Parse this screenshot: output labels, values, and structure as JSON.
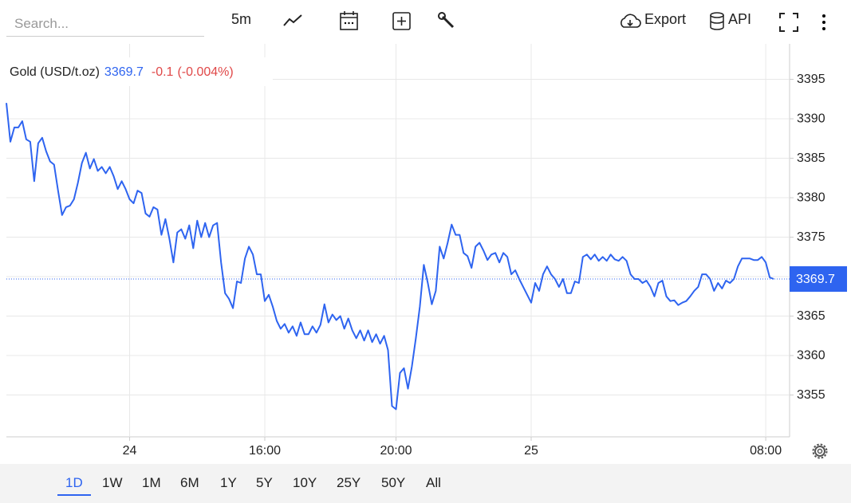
{
  "toolbar": {
    "search_placeholder": "Search...",
    "interval": "5m",
    "export": "Export",
    "api": "API"
  },
  "chart_data": {
    "type": "line",
    "title": "Gold (USD/t.oz)",
    "last": 3369.7,
    "change": -0.1,
    "change_percent": "(-0.004%)",
    "color": "#2e64f0",
    "values": [
      3392.0,
      3387.1,
      3388.9,
      3388.9,
      3389.7,
      3387.4,
      3387.1,
      3382.1,
      3386.9,
      3387.6,
      3385.9,
      3384.6,
      3384.2,
      3380.9,
      3377.8,
      3378.8,
      3379.0,
      3379.8,
      3381.9,
      3384.4,
      3385.7,
      3383.7,
      3384.9,
      3383.4,
      3383.9,
      3383.1,
      3383.9,
      3382.7,
      3381.1,
      3382.1,
      3381.1,
      3379.8,
      3379.3,
      3380.9,
      3380.6,
      3378.0,
      3377.6,
      3378.8,
      3378.5,
      3375.3,
      3377.3,
      3374.8,
      3371.8,
      3375.6,
      3376.0,
      3374.8,
      3376.5,
      3373.6,
      3377.1,
      3375.0,
      3376.8,
      3375.0,
      3376.5,
      3376.8,
      3371.8,
      3367.9,
      3367.2,
      3366.0,
      3369.4,
      3369.2,
      3372.3,
      3373.8,
      3372.8,
      3370.3,
      3370.3,
      3366.9,
      3367.7,
      3366.2,
      3364.4,
      3363.4,
      3364.0,
      3362.9,
      3363.7,
      3362.5,
      3364.2,
      3362.7,
      3362.7,
      3363.7,
      3362.9,
      3363.9,
      3366.5,
      3364.2,
      3365.2,
      3364.5,
      3365.0,
      3363.4,
      3364.7,
      3363.2,
      3362.2,
      3363.2,
      3361.9,
      3363.2,
      3361.7,
      3362.7,
      3361.5,
      3362.5,
      3360.7,
      3353.6,
      3353.2,
      3357.8,
      3358.4,
      3355.8,
      3358.6,
      3362.2,
      3366.2,
      3371.5,
      3369.2,
      3366.5,
      3368.2,
      3373.8,
      3372.3,
      3374.3,
      3376.6,
      3375.3,
      3375.3,
      3373.0,
      3372.6,
      3371.1,
      3373.8,
      3374.3,
      3373.3,
      3372.1,
      3372.8,
      3373.0,
      3371.8,
      3373.0,
      3372.5,
      3370.3,
      3370.8,
      3369.7,
      3368.7,
      3367.7,
      3366.7,
      3369.2,
      3368.2,
      3370.3,
      3371.3,
      3370.3,
      3369.7,
      3368.7,
      3369.7,
      3367.9,
      3367.9,
      3369.4,
      3369.2,
      3372.5,
      3372.8,
      3372.2,
      3372.8,
      3372.0,
      3372.5,
      3372.0,
      3372.8,
      3372.2,
      3372.0,
      3372.5,
      3372.0,
      3370.3,
      3369.7,
      3369.7,
      3369.2,
      3369.5,
      3368.7,
      3367.5,
      3369.2,
      3369.5,
      3367.5,
      3366.9,
      3367.0,
      3366.4,
      3366.7,
      3366.9,
      3367.5,
      3368.2,
      3368.7,
      3370.3,
      3370.3,
      3369.7,
      3368.2,
      3369.2,
      3368.5,
      3369.5,
      3369.2,
      3369.7,
      3371.3,
      3372.3,
      3372.3,
      3372.3,
      3372.1,
      3372.1,
      3372.5,
      3371.8,
      3369.9,
      3369.7
    ],
    "xlim": [
      0,
      197
    ],
    "xticks": [
      {
        "value": 31,
        "label": "24"
      },
      {
        "value": 65,
        "label": "16:00"
      },
      {
        "value": 98,
        "label": "20:00"
      },
      {
        "value": 132,
        "label": "25"
      },
      {
        "value": 191,
        "label": "08:00"
      }
    ],
    "ylim": [
      3349.7,
      3399.5
    ],
    "yticks": [
      3355,
      3360,
      3365,
      3370,
      3375,
      3380,
      3385,
      3390,
      3395
    ],
    "grid": true
  },
  "ranges": {
    "items": [
      "1D",
      "1W",
      "1M",
      "6M",
      "1Y",
      "5Y",
      "10Y",
      "25Y",
      "50Y",
      "All"
    ],
    "active": 0
  }
}
